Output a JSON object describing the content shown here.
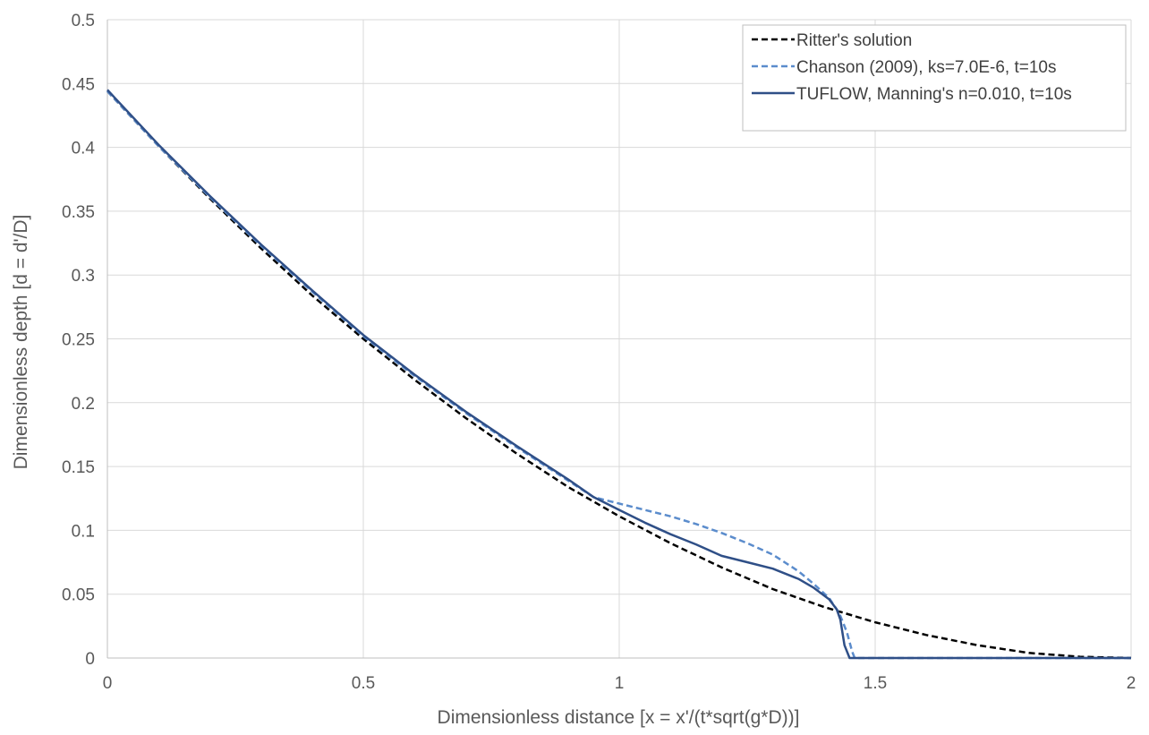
{
  "chart_data": {
    "type": "line",
    "title": "",
    "xlabel": "Dimensionless distance [x = x'/(t*sqrt(g*D))]",
    "ylabel": "Dimensionless depth [d = d'/D]",
    "xlim": [
      0,
      2
    ],
    "ylim": [
      0,
      0.5
    ],
    "x_ticks": [
      "0",
      "0.5",
      "1",
      "1.5",
      "2"
    ],
    "y_ticks": [
      "0",
      "0.05",
      "0.1",
      "0.15",
      "0.2",
      "0.25",
      "0.3",
      "0.35",
      "0.4",
      "0.45",
      "0.5"
    ],
    "grid": true,
    "legend_position": "top-right",
    "series": [
      {
        "name": "Ritter's solution",
        "color": "#000000",
        "style": "dashed",
        "x": [
          0,
          0.1,
          0.2,
          0.3,
          0.4,
          0.5,
          0.6,
          0.7,
          0.8,
          0.9,
          1.0,
          1.1,
          1.2,
          1.3,
          1.4,
          1.5,
          1.6,
          1.7,
          1.8,
          1.9,
          2.0
        ],
        "y": [
          0.444,
          0.401,
          0.36,
          0.321,
          0.284,
          0.25,
          0.218,
          0.188,
          0.16,
          0.134,
          0.111,
          0.09,
          0.071,
          0.054,
          0.04,
          0.028,
          0.018,
          0.01,
          0.004,
          0.001,
          0
        ]
      },
      {
        "name": "Chanson (2009), ks=7.0E-6, t=10s",
        "color": "#5b8ccc",
        "style": "dashed",
        "x": [
          0,
          0.1,
          0.2,
          0.3,
          0.4,
          0.5,
          0.6,
          0.7,
          0.8,
          0.9,
          0.95,
          1.0,
          1.05,
          1.1,
          1.15,
          1.2,
          1.25,
          1.3,
          1.35,
          1.38,
          1.41,
          1.43,
          1.445,
          1.455,
          1.46,
          1.5,
          1.6,
          1.8,
          2.0
        ],
        "y": [
          0.444,
          0.401,
          0.361,
          0.323,
          0.287,
          0.252,
          0.221,
          0.192,
          0.165,
          0.139,
          0.126,
          0.121,
          0.116,
          0.111,
          0.105,
          0.098,
          0.09,
          0.081,
          0.068,
          0.058,
          0.047,
          0.035,
          0.02,
          0.005,
          0,
          0,
          0,
          0,
          0
        ]
      },
      {
        "name": "TUFLOW, Manning's n=0.010, t=10s",
        "color": "#2f4f87",
        "style": "solid",
        "x": [
          0,
          0.1,
          0.2,
          0.3,
          0.4,
          0.5,
          0.6,
          0.7,
          0.8,
          0.9,
          0.95,
          1.0,
          1.05,
          1.1,
          1.15,
          1.2,
          1.25,
          1.3,
          1.35,
          1.38,
          1.41,
          1.425,
          1.432,
          1.436,
          1.44,
          1.45,
          1.5,
          1.6,
          1.8,
          2.0
        ],
        "y": [
          0.445,
          0.402,
          0.362,
          0.324,
          0.288,
          0.253,
          0.222,
          0.193,
          0.166,
          0.14,
          0.126,
          0.116,
          0.106,
          0.097,
          0.089,
          0.08,
          0.075,
          0.07,
          0.062,
          0.055,
          0.046,
          0.038,
          0.03,
          0.02,
          0.01,
          0,
          0,
          0,
          0,
          0
        ]
      }
    ]
  }
}
